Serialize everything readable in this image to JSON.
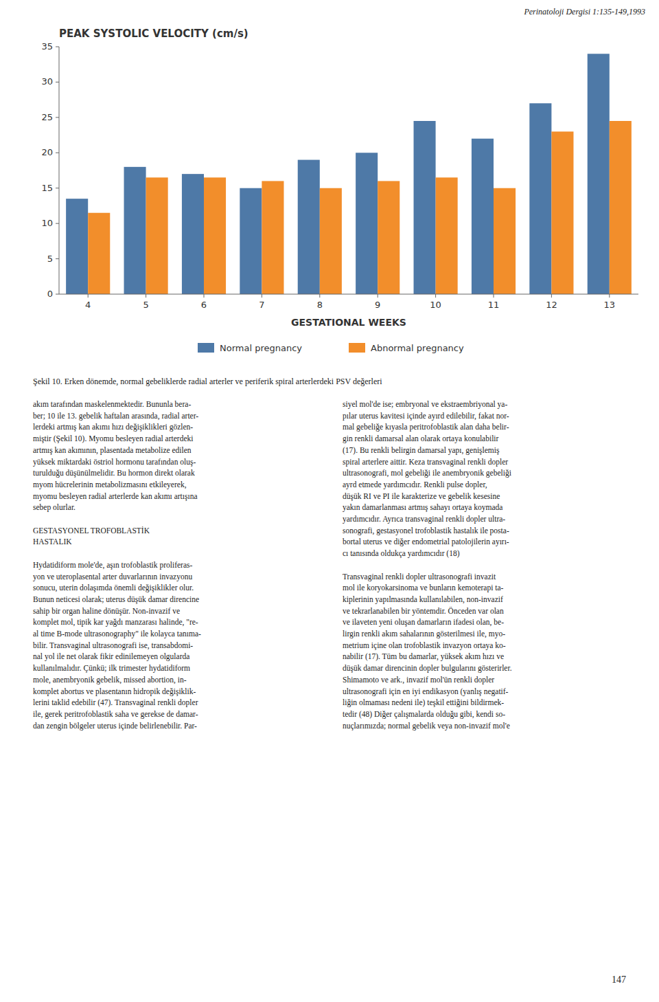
{
  "chart_data": {
    "type": "bar",
    "title": "PEAK SYSTOLIC VELOCITY  (cm/s)",
    "x_label": "GESTATIONAL  WEEKS",
    "categories": [
      "4",
      "5",
      "6",
      "7",
      "8",
      "9",
      "10",
      "11",
      "12",
      "13"
    ],
    "series": [
      {
        "name": "Normal pregnancy",
        "values": [
          13.5,
          18.0,
          17.0,
          15.0,
          19.0,
          20.0,
          24.5,
          22.0,
          27.0,
          34.0
        ]
      },
      {
        "name": "Abnormal pregnancy",
        "values": [
          11.5,
          16.5,
          16.5,
          16.0,
          15.0,
          16.0,
          16.5,
          15.0,
          23.0,
          24.5
        ]
      }
    ],
    "ylim": [
      0,
      35
    ],
    "yticks": [
      0,
      5,
      10,
      15,
      20,
      25,
      30,
      35
    ],
    "grid": false,
    "legend": "bottom"
  },
  "header_text": "Perinatoloji Dergisi 1:135-149,1993",
  "caption": "Şekil 10. Erken dönemde, normal gebeliklerde radial arterler ve periferik spiral arterlerdeki PSV değerleri",
  "left_col_text": "akım tarafından maskelenmektedir. Bununla bera-\nber; 10 ile 13. gebelik haftalan arasında, radial arter-\nlerdeki artmış kan akımı hızı değişiklikleri gözlen-\nmiştir (Şekil 10). Myomu besleyen radial arterdeki\nartmış kan akımının, plasentada metabolize edilen\nyüksek miktardaki östriol hormonu tarafından oluş-\nturulduğu düşünülmelidir. Bu hormon direkt olarak\nmyom hücrelerinin metabolizmasını etkileyerek,\nmyomu besleyen radial arterlerde kan akımı artışına\nsebep olurlar.\n\nGESTASYONEL TROFOBLASTİK\nHASTALIK\n\nHydatidiform mole'de, aşın trofoblastik proliferas-\nyon ve uteroplasental arter duvarlarının invazyonu\nsonucu, uterin dolaşımda önemli değişiklikler olur.\nBunun neticesi olarak; uterus düşük damar direncine\nsahip bir organ haline dönüşür. Non-invazif ve\nkomplet mol, tipik kar yağdı manzarası halinde, \"re-\nal time B-mode ultrasonography\" ile kolayca tanıma-\nbilir. Transvaginal ultrasonografi ise, transabdomi-\nnal yol ile net olarak fikir edinilemeyen olgularda\nkullanılmalıdır. Çünkü; ilk trimester hydatidiform\nmole, anembryonik gebelik, missed abortion, in-\nkomplet abortus ve plasentanın hidropik değişiklik-\nlerini taklid edebilir (47). Transvaginal renkli dopler\nile, gerek peritrofoblastik saha ve gerekse de damar-\ndan zengin bölgeler uterus içinde belirlenebilir. Par-",
  "right_col_text": "siyel mol'de ise; embryonal ve ekstraembriyonal ya-\npılar uterus kavitesi içinde ayırd edilebilir, fakat nor-\nmal gebeliğe kıyasla peritrofoblastik alan daha belir-\ngin renkli damarsal alan olarak ortaya konulabilir\n(17). Bu renkli belirgin damarsal yapı, genişlemiş\nspiral arterlere aittir. Keza transvaginal renkli dopler\nultrasonografi, mol gebeliği ile anembryonik gebeliği\nayrd etmede yardımcıdır. Renkli pulse dopler,\ndüşük RI ve PI ile karakterize ve gebelik kesesine\nyakın damarlanması artmış sahayı ortaya koymada\nyardımcıdır. Ayrıca transvaginal renkli dopler ultra-\nsonografi, gestasyonel trofoblastik hastalık ile posta-\nbortal uterus ve diğer endometrial patolojilerin ayırı-\ncı tanısında oldukça yardımcıdır (18)\n\nTransvaginal renkli dopler ultrasonografi invazit\nmol ile koryokarsinoma ve bunların kemoterapi ta-\nkiplerinin yapılmasında kullanılabilen, non-invazif\nve tekrarlanabilen bir yöntemdir. Önceden var olan\nve ilaveten yeni oluşan damarların ifadesi olan, be-\nlirgin renkli akım sahalarının gösterilmesi ile, myo-\nmetrium içine olan trofoblastik invazyon ortaya ko-\nnabilir (17). Tüm bu damarlar, yüksek akım hızı ve\ndüşük damar direncinin dopler bulgularını gösterirler.\nShimamoto ve ark., invazif mol'ün renkli dopler\nultrasonografi için en iyi endikasyon (yanlış negatif-\nliğin olmaması nedeni ile) teşkil ettiğini bildirmek-\ntedir (48) Diğer çalışmalarda olduğu gibi, kendi so-\nnuçlarımızda; normal gebelik veya non-invazif mol'e",
  "page_number": "147"
}
